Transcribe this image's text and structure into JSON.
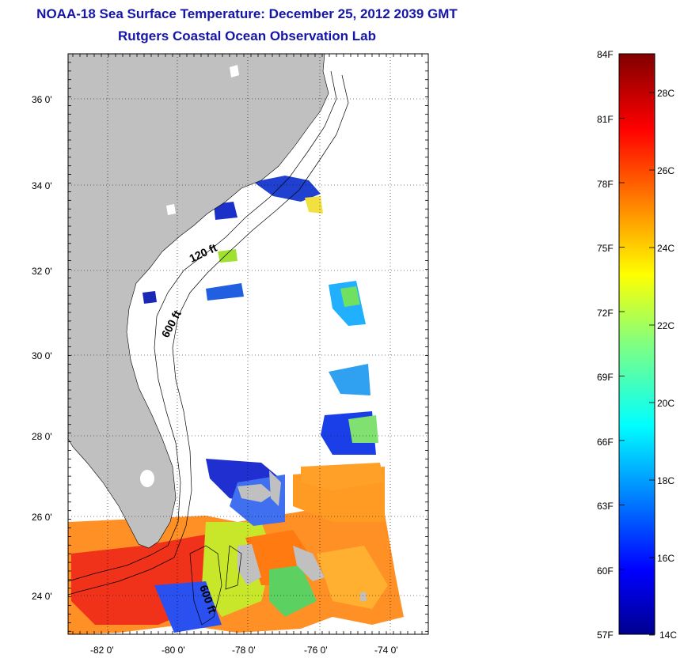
{
  "title": {
    "line1": "NOAA-18 Sea Surface Temperature:  December 25, 2012 2039 GMT",
    "line2": "Rutgers Coastal Ocean Observation Lab"
  },
  "map": {
    "lon_labels": [
      "-82 0'",
      "-80 0'",
      "-78 0'",
      "-76 0'",
      "-74 0'"
    ],
    "lat_labels": [
      "36 0'",
      "34 0'",
      "32 0'",
      "30 0'",
      "28 0'",
      "26 0'",
      "24 0'"
    ],
    "contour_labels": [
      "120 ft",
      "600 ft",
      "600 ft"
    ],
    "land_color": "#c0c0c0"
  },
  "colorbar": {
    "fahrenheit_labels": [
      "84F",
      "81F",
      "78F",
      "75F",
      "72F",
      "69F",
      "66F",
      "63F",
      "60F",
      "57F"
    ],
    "celsius_labels": [
      "28C",
      "26C",
      "24C",
      "22C",
      "20C",
      "18C",
      "16C",
      "14C"
    ],
    "colormap": "jet"
  }
}
